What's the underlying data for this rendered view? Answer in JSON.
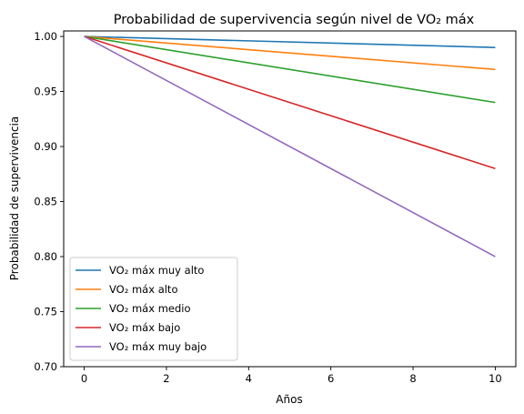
{
  "chart_data": {
    "type": "line",
    "title": "Probabilidad de supervivencia según nivel de VO₂ máx",
    "xlabel": "Años",
    "ylabel": "Probabilidad de supervivencia",
    "xlim": [
      -0.5,
      10.5
    ],
    "ylim": [
      0.7,
      1.005
    ],
    "xticks": [
      0,
      2,
      4,
      6,
      8,
      10
    ],
    "xtick_labels": [
      "0",
      "2",
      "4",
      "6",
      "8",
      "10"
    ],
    "yticks": [
      0.7,
      0.75,
      0.8,
      0.85,
      0.9,
      0.95,
      1.0
    ],
    "ytick_labels": [
      "0.70",
      "0.75",
      "0.80",
      "0.85",
      "0.90",
      "0.95",
      "1.00"
    ],
    "grid": false,
    "legend_position": "lower-left",
    "series": [
      {
        "name": "VO₂ máx muy alto",
        "color": "#1f77b4",
        "x": [
          0,
          10
        ],
        "y": [
          1.0,
          0.99
        ]
      },
      {
        "name": "VO₂ máx alto",
        "color": "#ff7f0e",
        "x": [
          0,
          10
        ],
        "y": [
          1.0,
          0.97
        ]
      },
      {
        "name": "VO₂ máx medio",
        "color": "#2ca02c",
        "x": [
          0,
          10
        ],
        "y": [
          1.0,
          0.94
        ]
      },
      {
        "name": "VO₂ máx bajo",
        "color": "#d62728",
        "x": [
          0,
          10
        ],
        "y": [
          1.0,
          0.88
        ]
      },
      {
        "name": "VO₂ máx muy bajo",
        "color": "#9467bd",
        "x": [
          0,
          10
        ],
        "y": [
          1.0,
          0.8
        ]
      }
    ]
  }
}
